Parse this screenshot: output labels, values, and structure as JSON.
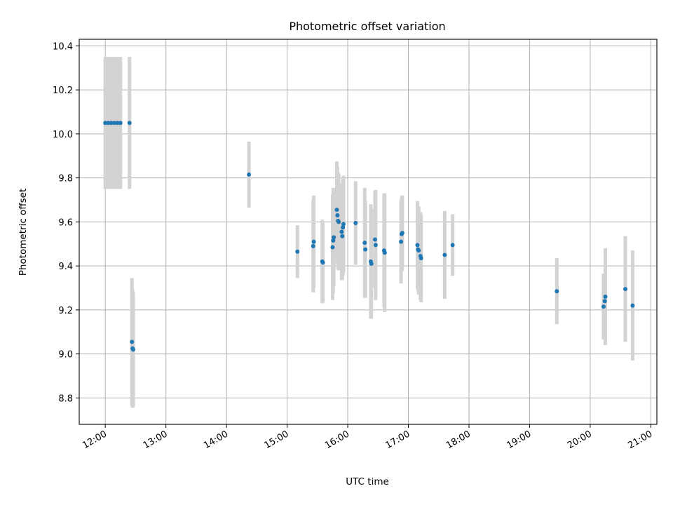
{
  "chart_data": {
    "type": "scatter",
    "title": "Photometric offset variation",
    "xlabel": "UTC time",
    "ylabel": "Photometric offset",
    "x_unit": "hours UTC",
    "xlim": [
      11.57,
      21.1
    ],
    "ylim": [
      8.68,
      10.43
    ],
    "grid": true,
    "x_ticks": [
      {
        "value": 12,
        "label": "12:00"
      },
      {
        "value": 13,
        "label": "13:00"
      },
      {
        "value": 14,
        "label": "14:00"
      },
      {
        "value": 15,
        "label": "15:00"
      },
      {
        "value": 16,
        "label": "16:00"
      },
      {
        "value": 17,
        "label": "17:00"
      },
      {
        "value": 18,
        "label": "18:00"
      },
      {
        "value": 19,
        "label": "19:00"
      },
      {
        "value": 20,
        "label": "20:00"
      },
      {
        "value": 21,
        "label": "21:00"
      }
    ],
    "y_ticks": [
      {
        "value": 8.8,
        "label": "8.8"
      },
      {
        "value": 9.0,
        "label": "9.0"
      },
      {
        "value": 9.2,
        "label": "9.2"
      },
      {
        "value": 9.4,
        "label": "9.4"
      },
      {
        "value": 9.6,
        "label": "9.6"
      },
      {
        "value": 9.8,
        "label": "9.8"
      },
      {
        "value": 10.0,
        "label": "10.0"
      },
      {
        "value": 10.2,
        "label": "10.2"
      },
      {
        "value": 10.4,
        "label": "10.4"
      }
    ],
    "point_color": "#1f77b4",
    "errorbar_color": "#d3d3d3",
    "series": [
      {
        "points": [
          {
            "x": 12.0,
            "y": 10.05,
            "err": 0.3
          },
          {
            "x": 12.05,
            "y": 10.05,
            "err": 0.3
          },
          {
            "x": 12.1,
            "y": 10.05,
            "err": 0.3
          },
          {
            "x": 12.15,
            "y": 10.05,
            "err": 0.3
          },
          {
            "x": 12.2,
            "y": 10.05,
            "err": 0.3
          },
          {
            "x": 12.25,
            "y": 10.05,
            "err": 0.3
          },
          {
            "x": 12.4,
            "y": 10.05,
            "err": 0.3
          },
          {
            "x": 12.44,
            "y": 9.055,
            "err": 0.29
          },
          {
            "x": 12.45,
            "y": 9.025,
            "err": 0.27
          },
          {
            "x": 12.46,
            "y": 9.02,
            "err": 0.26
          },
          {
            "x": 14.37,
            "y": 9.815,
            "err": 0.15
          },
          {
            "x": 15.17,
            "y": 9.465,
            "err": 0.12
          },
          {
            "x": 15.43,
            "y": 9.49,
            "err": 0.21
          },
          {
            "x": 15.44,
            "y": 9.51,
            "err": 0.21
          },
          {
            "x": 15.58,
            "y": 9.42,
            "err": 0.19
          },
          {
            "x": 15.59,
            "y": 9.415,
            "err": 0.18
          },
          {
            "x": 15.75,
            "y": 9.485,
            "err": 0.24
          },
          {
            "x": 15.76,
            "y": 9.515,
            "err": 0.24
          },
          {
            "x": 15.77,
            "y": 9.53,
            "err": 0.22
          },
          {
            "x": 15.82,
            "y": 9.655,
            "err": 0.22
          },
          {
            "x": 15.83,
            "y": 9.63,
            "err": 0.22
          },
          {
            "x": 15.84,
            "y": 9.605,
            "err": 0.22
          },
          {
            "x": 15.85,
            "y": 9.6,
            "err": 0.22
          },
          {
            "x": 15.9,
            "y": 9.555,
            "err": 0.22
          },
          {
            "x": 15.91,
            "y": 9.535,
            "err": 0.2
          },
          {
            "x": 15.92,
            "y": 9.575,
            "err": 0.22
          },
          {
            "x": 15.93,
            "y": 9.59,
            "err": 0.22
          },
          {
            "x": 16.13,
            "y": 9.595,
            "err": 0.19
          },
          {
            "x": 16.28,
            "y": 9.505,
            "err": 0.25
          },
          {
            "x": 16.29,
            "y": 9.475,
            "err": 0.22
          },
          {
            "x": 16.38,
            "y": 9.42,
            "err": 0.26
          },
          {
            "x": 16.39,
            "y": 9.41,
            "err": 0.25
          },
          {
            "x": 16.45,
            "y": 9.52,
            "err": 0.22
          },
          {
            "x": 16.46,
            "y": 9.495,
            "err": 0.25
          },
          {
            "x": 16.6,
            "y": 9.47,
            "err": 0.26
          },
          {
            "x": 16.61,
            "y": 9.46,
            "err": 0.27
          },
          {
            "x": 16.88,
            "y": 9.51,
            "err": 0.19
          },
          {
            "x": 16.89,
            "y": 9.545,
            "err": 0.17
          },
          {
            "x": 16.9,
            "y": 9.55,
            "err": 0.17
          },
          {
            "x": 17.15,
            "y": 9.495,
            "err": 0.2
          },
          {
            "x": 17.16,
            "y": 9.475,
            "err": 0.19
          },
          {
            "x": 17.17,
            "y": 9.47,
            "err": 0.2
          },
          {
            "x": 17.2,
            "y": 9.445,
            "err": 0.2
          },
          {
            "x": 17.21,
            "y": 9.435,
            "err": 0.2
          },
          {
            "x": 17.6,
            "y": 9.45,
            "err": 0.2
          },
          {
            "x": 17.73,
            "y": 9.495,
            "err": 0.14
          },
          {
            "x": 19.45,
            "y": 9.285,
            "err": 0.15
          },
          {
            "x": 20.22,
            "y": 9.215,
            "err": 0.15
          },
          {
            "x": 20.24,
            "y": 9.24,
            "err": 0.12
          },
          {
            "x": 20.25,
            "y": 9.26,
            "err": 0.22
          },
          {
            "x": 20.58,
            "y": 9.295,
            "err": 0.24
          },
          {
            "x": 20.7,
            "y": 9.22,
            "err": 0.25
          }
        ]
      }
    ]
  }
}
